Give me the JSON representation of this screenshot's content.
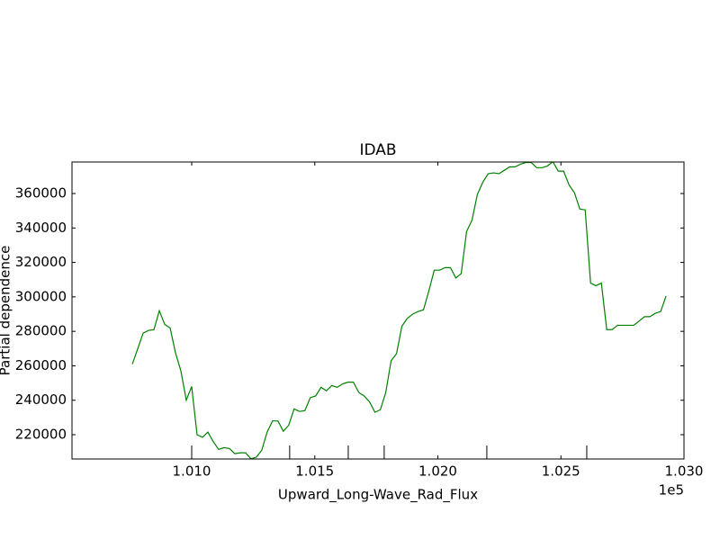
{
  "chart_data": {
    "type": "line",
    "title": "IDAB",
    "xlabel": "Upward_Long-Wave_Rad_Flux",
    "ylabel": "Partial dependence",
    "x_offset_label": "1e5",
    "x": [
      100759.0,
      100780.9,
      100802.8,
      100824.7,
      100846.6,
      100868.5,
      100890.4,
      100912.3,
      100934.2,
      100956.1,
      100978.0,
      100999.9,
      101021.8,
      101043.7,
      101065.6,
      101087.5,
      101109.4,
      101131.3,
      101153.2,
      101175.1,
      101197.0,
      101218.9,
      101240.8,
      101262.7,
      101284.6,
      101306.5,
      101328.4,
      101350.3,
      101372.2,
      101394.1,
      101416.0,
      101437.9,
      101459.8,
      101481.7,
      101503.6,
      101525.5,
      101547.4,
      101569.3,
      101591.2,
      101613.1,
      101635.0,
      101656.9,
      101678.8,
      101700.7,
      101722.6,
      101744.5,
      101766.4,
      101788.3,
      101810.2,
      101832.1,
      101854.0,
      101875.9,
      101897.8,
      101919.7,
      101941.6,
      101963.5,
      101985.4,
      102007.3,
      102029.2,
      102051.1,
      102073.0,
      102094.9,
      102116.8,
      102138.7,
      102160.6,
      102182.5,
      102204.4,
      102226.3,
      102248.2,
      102270.1,
      102292.0,
      102313.9,
      102335.8,
      102357.7,
      102379.6,
      102401.5,
      102423.4,
      102445.3,
      102467.2,
      102489.1,
      102511.0,
      102532.9,
      102554.8,
      102576.7,
      102598.6,
      102620.5,
      102642.4,
      102664.3,
      102686.2,
      102708.1,
      102730.0,
      102751.9,
      102773.8,
      102795.7,
      102817.6,
      102839.5,
      102861.4,
      102883.3,
      102905.2,
      102927.1
    ],
    "series": [
      {
        "name": "IDAB",
        "color": "#008000",
        "values": [
          261000,
          270000,
          279000,
          280500,
          281000,
          292000,
          284000,
          282000,
          267500,
          257000,
          240000,
          248000,
          220000,
          218500,
          221500,
          216000,
          211500,
          212500,
          212000,
          209000,
          209500,
          209500,
          206000,
          207000,
          211000,
          221500,
          228000,
          228000,
          222000,
          225500,
          235000,
          233500,
          234000,
          241500,
          242500,
          247500,
          245500,
          248500,
          247500,
          249500,
          250500,
          250500,
          244500,
          242500,
          239000,
          233000,
          234500,
          244500,
          263000,
          267000,
          283000,
          287500,
          290000,
          291500,
          292500,
          303500,
          315500,
          315500,
          317000,
          317000,
          311000,
          313500,
          338000,
          344500,
          359500,
          366500,
          371500,
          372000,
          371500,
          373500,
          375500,
          375500,
          377000,
          378000,
          378000,
          375000,
          375000,
          376000,
          378500,
          373000,
          373000,
          365000,
          360500,
          351000,
          350500,
          308000,
          306500,
          308000,
          281000,
          281000,
          283500,
          283500,
          283500,
          283500,
          286000,
          288500,
          288500,
          290500,
          291500,
          300500
        ]
      }
    ],
    "xlim": [
      100513.7,
      103000
    ],
    "ylim": [
      205900,
      378300
    ],
    "xticks": [
      {
        "value": 101000,
        "label": "1.010"
      },
      {
        "value": 101500,
        "label": "1.015"
      },
      {
        "value": 102000,
        "label": "1.020"
      },
      {
        "value": 102500,
        "label": "1.025"
      },
      {
        "value": 103000,
        "label": "1.030"
      }
    ],
    "yticks": [
      220000,
      240000,
      260000,
      280000,
      300000,
      320000,
      340000,
      360000
    ],
    "deciles": [
      101000,
      101398,
      101636,
      101782,
      102199,
      102605
    ],
    "grid": false
  }
}
